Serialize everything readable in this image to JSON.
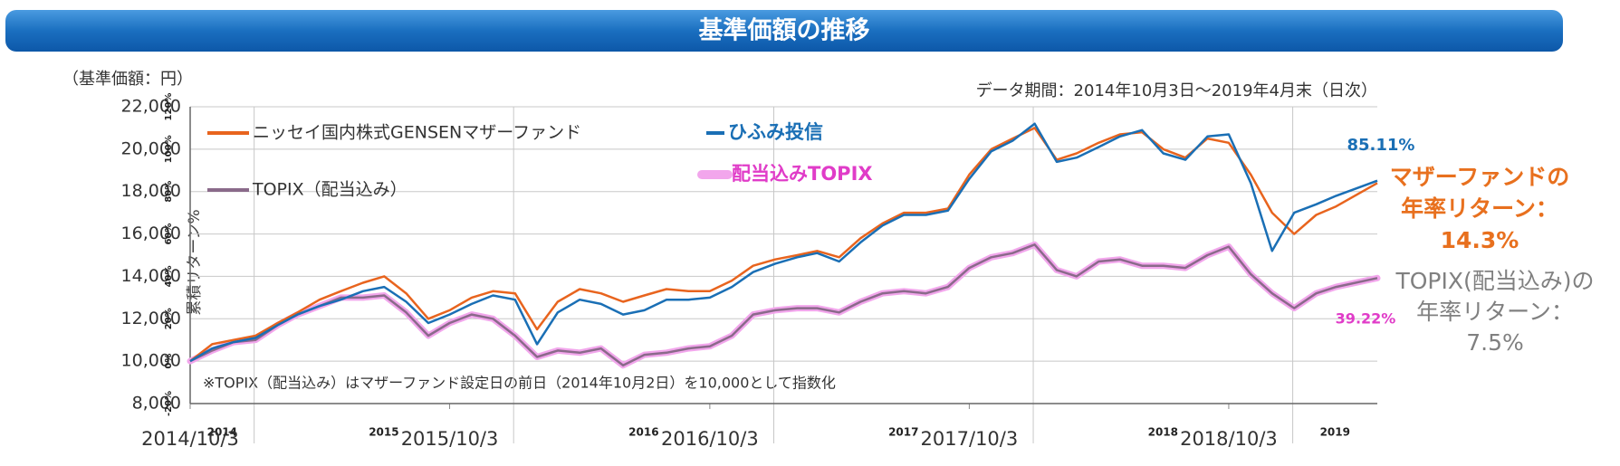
{
  "chart_data": {
    "type": "line",
    "title": "基準価額の推移",
    "ylabel": "（基準価額：円）",
    "y2label": "累積リターン%",
    "data_period": "データ期間：2014年10月3日～2019年4月末（日次）",
    "note": "※TOPIX（配当込み）はマザーファンド設定日の前日（2014年10月2日）を10,000として指数化",
    "x": [
      "2014-10-03",
      "2014-11-03",
      "2014-12-03",
      "2015-01-03",
      "2015-02-03",
      "2015-03-03",
      "2015-04-03",
      "2015-05-03",
      "2015-06-03",
      "2015-07-03",
      "2015-08-03",
      "2015-09-03",
      "2015-10-03",
      "2015-11-03",
      "2015-12-03",
      "2016-01-03",
      "2016-02-03",
      "2016-03-03",
      "2016-04-03",
      "2016-05-03",
      "2016-06-03",
      "2016-07-03",
      "2016-08-03",
      "2016-09-03",
      "2016-10-03",
      "2016-11-03",
      "2016-12-03",
      "2017-01-03",
      "2017-02-03",
      "2017-03-03",
      "2017-04-03",
      "2017-05-03",
      "2017-06-03",
      "2017-07-03",
      "2017-08-03",
      "2017-09-03",
      "2017-10-03",
      "2017-11-03",
      "2017-12-03",
      "2018-01-03",
      "2018-02-03",
      "2018-03-03",
      "2018-04-03",
      "2018-05-03",
      "2018-06-03",
      "2018-07-03",
      "2018-08-03",
      "2018-09-03",
      "2018-10-03",
      "2018-11-03",
      "2018-12-03",
      "2019-01-03",
      "2019-02-03",
      "2019-03-03",
      "2019-04-30"
    ],
    "series": [
      {
        "name": "ニッセイ国内株式GENSENマザーファンド",
        "color": "#e8641e",
        "values": [
          10000,
          10800,
          11000,
          11200,
          11800,
          12300,
          12900,
          13300,
          13700,
          14000,
          13200,
          12000,
          12400,
          13000,
          13300,
          13200,
          11500,
          12800,
          13400,
          13200,
          12800,
          13100,
          13400,
          13300,
          13300,
          13800,
          14500,
          14800,
          15000,
          15200,
          14900,
          15800,
          16500,
          17000,
          17000,
          17200,
          18800,
          20000,
          20500,
          21000,
          19500,
          19800,
          20300,
          20700,
          20800,
          20000,
          19600,
          20500,
          20300,
          18800,
          17000,
          16000,
          16900,
          17300,
          18400
        ]
      },
      {
        "name": "ひふみ投信",
        "color": "#1a6fb5",
        "values": [
          10000,
          10600,
          10900,
          11100,
          11700,
          12200,
          12600,
          12900,
          13300,
          13500,
          12800,
          11800,
          12200,
          12700,
          13100,
          12900,
          10800,
          12300,
          12900,
          12700,
          12200,
          12400,
          12900,
          12900,
          13000,
          13500,
          14200,
          14600,
          14900,
          15100,
          14700,
          15600,
          16400,
          16900,
          16900,
          17100,
          18600,
          19900,
          20400,
          21200,
          19400,
          19600,
          20100,
          20600,
          20900,
          19800,
          19500,
          20600,
          20700,
          18400,
          15200,
          17000,
          17400,
          17800,
          18511
        ]
      },
      {
        "name": "TOPIX（配当込み）",
        "color": "#8a6a8a",
        "highlight_color": "#f2a6ec",
        "values": [
          10000,
          10500,
          10900,
          11000,
          11700,
          12200,
          12600,
          13000,
          13000,
          13100,
          12300,
          11200,
          11800,
          12200,
          12000,
          11200,
          10200,
          10500,
          10400,
          10600,
          9800,
          10300,
          10400,
          10600,
          10700,
          11200,
          12200,
          12400,
          12500,
          12500,
          12300,
          12800,
          13200,
          13300,
          13200,
          13500,
          14400,
          14900,
          15100,
          15500,
          14300,
          14000,
          14700,
          14800,
          14500,
          14500,
          14400,
          15000,
          15400,
          14100,
          13200,
          12500,
          13200,
          13500,
          13922
        ]
      }
    ],
    "xlim": [
      "2014-10-03",
      "2019-04-30"
    ],
    "xticks": [
      {
        "value": "2014-10-03",
        "label": "2014/10/3"
      },
      {
        "value": "2015-10-03",
        "label": "2015/10/3"
      },
      {
        "value": "2016-10-03",
        "label": "2016/10/3"
      },
      {
        "value": "2017-10-03",
        "label": "2017/10/3"
      },
      {
        "value": "2018-10-03",
        "label": "2018/10/3"
      }
    ],
    "year_labels": [
      "2014",
      "2015",
      "2016",
      "2017",
      "2018",
      "2019"
    ],
    "ylim": [
      8000,
      22000
    ],
    "yticks": [
      {
        "value": 8000,
        "label": "8,000"
      },
      {
        "value": 10000,
        "label": "10,000"
      },
      {
        "value": 12000,
        "label": "12,000"
      },
      {
        "value": 14000,
        "label": "14,000"
      },
      {
        "value": 16000,
        "label": "16,000"
      },
      {
        "value": 18000,
        "label": "18,000"
      },
      {
        "value": 20000,
        "label": "20,000"
      },
      {
        "value": 22000,
        "label": "22,000"
      }
    ],
    "y2lim": [
      -20,
      120
    ],
    "y2ticks": [
      {
        "value": -20,
        "label": "-20%"
      },
      {
        "value": 0,
        "label": "0%"
      },
      {
        "value": 20,
        "label": "20%"
      },
      {
        "value": 40,
        "label": "40%"
      },
      {
        "value": 60,
        "label": "60%"
      },
      {
        "value": 80,
        "label": "80%"
      },
      {
        "value": 100,
        "label": "100%"
      },
      {
        "value": 120,
        "label": "120%"
      }
    ],
    "grid": true,
    "annotations": [
      {
        "lines": [
          "配当込みTOPIX"
        ],
        "color": "#e03cc8",
        "highlight_color": "#f2a6ec"
      },
      {
        "lines": [
          "85.11%"
        ],
        "color": "#1a6fb5"
      },
      {
        "lines": [
          "39.22%"
        ],
        "color": "#e03cc8"
      },
      {
        "lines": [
          "マザーファンドの",
          "年率リターン：",
          "14.3%"
        ],
        "color": "#e8701e"
      },
      {
        "lines": [
          "TOPIX(配当込み)の",
          "年率リターン：",
          "7.5%"
        ],
        "color": "#808080"
      }
    ]
  }
}
